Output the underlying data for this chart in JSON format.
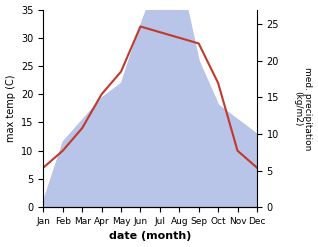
{
  "months": [
    "Jan",
    "Feb",
    "Mar",
    "Apr",
    "May",
    "Jun",
    "Jul",
    "Aug",
    "Sep",
    "Oct",
    "Nov",
    "Dec"
  ],
  "temperature": [
    7,
    10,
    14,
    20,
    24,
    32,
    31,
    30,
    29,
    22,
    10,
    7
  ],
  "precipitation": [
    1,
    9,
    12,
    15,
    17,
    25,
    32,
    32,
    20,
    14,
    12,
    10
  ],
  "temp_color": "#c0392b",
  "precip_fill_color": "#b8c4e8",
  "ylabel_left": "max temp (C)",
  "ylabel_right": "med. precipitation\n(kg/m2)",
  "xlabel": "date (month)",
  "ylim_left": [
    0,
    35
  ],
  "ylim_right": [
    0,
    27
  ],
  "yticks_left": [
    0,
    5,
    10,
    15,
    20,
    25,
    30,
    35
  ],
  "yticks_right": [
    0,
    5,
    10,
    15,
    20,
    25
  ]
}
